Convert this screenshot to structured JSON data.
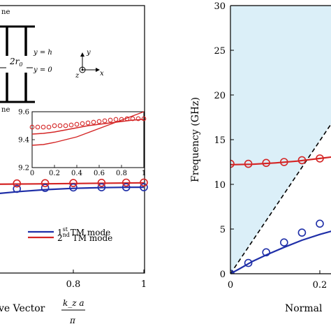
{
  "colors": {
    "blue": "#1f2fa8",
    "red": "#d42525",
    "light_region": "#dbeff8",
    "black": "#000000"
  },
  "chart_data": [
    {
      "type": "line",
      "panel": "left",
      "xlabel": "ve Vector",
      "xlabel_fraction_num": "k_z a",
      "xlabel_fraction_den": "π",
      "xticks": [
        "0.8",
        "1"
      ],
      "xtick_values": [
        0.8,
        1.0
      ],
      "xlim": [
        0.58,
        1.0
      ],
      "ylim": [
        0,
        30
      ],
      "legend": [
        {
          "label_prefix": "1",
          "label_sup": "st",
          "label_suffix": " TM mode",
          "color": "blue"
        },
        {
          "label_prefix": "2",
          "label_sup": "nd",
          "label_suffix": " TM mode",
          "color": "red"
        }
      ],
      "legend_position": "bottom-right",
      "series": [
        {
          "name": "1st TM mode",
          "color": "blue",
          "line_x": [
            0.58,
            0.65,
            0.72,
            0.8,
            0.88,
            0.95,
            1.0
          ],
          "line_y": [
            8.9,
            9.15,
            9.35,
            9.5,
            9.58,
            9.62,
            9.63
          ],
          "points_x": [
            0.58,
            0.64,
            0.72,
            0.8,
            0.88,
            0.95,
            1.0
          ],
          "points_y": [
            9.3,
            9.45,
            9.55,
            9.6,
            9.62,
            9.63,
            9.63
          ]
        },
        {
          "name": "2nd TM mode",
          "color": "red",
          "line_x": [
            0.58,
            0.7,
            0.8,
            0.9,
            1.0
          ],
          "line_y": [
            9.96,
            10.0,
            10.04,
            10.08,
            10.12
          ],
          "points_x": [
            0.58,
            0.64,
            0.72,
            0.8,
            0.88,
            0.95,
            1.0
          ],
          "points_y": [
            10.0,
            10.05,
            10.08,
            10.1,
            10.12,
            10.14,
            10.15
          ]
        }
      ],
      "inset": {
        "xlim": [
          0,
          1
        ],
        "ylim": [
          9.2,
          9.6
        ],
        "xticks": [
          "0",
          "0.2",
          "0.4",
          "0.6",
          "0.8",
          "1"
        ],
        "xtick_values": [
          0,
          0.2,
          0.4,
          0.6,
          0.8,
          1
        ],
        "yticks": [
          "9.2",
          "9.4",
          "9.6"
        ],
        "ytick_values": [
          9.2,
          9.4,
          9.6
        ],
        "line_x": [
          0,
          0.1,
          0.2,
          0.3,
          0.4,
          0.5,
          0.6,
          0.7,
          0.8,
          0.9,
          1.0
        ],
        "line_lower_y": [
          9.36,
          9.365,
          9.38,
          9.4,
          9.42,
          9.45,
          9.48,
          9.51,
          9.54,
          9.57,
          9.6
        ],
        "line_upper_y": [
          9.44,
          9.445,
          9.455,
          9.47,
          9.485,
          9.5,
          9.51,
          9.52,
          9.53,
          9.54,
          9.545
        ],
        "points_x": [
          0,
          0.05,
          0.1,
          0.15,
          0.2,
          0.25,
          0.3,
          0.35,
          0.4,
          0.45,
          0.5,
          0.55,
          0.6,
          0.65,
          0.7,
          0.75,
          0.8,
          0.85,
          0.9,
          0.95,
          1.0
        ],
        "points_y": [
          9.49,
          9.49,
          9.49,
          9.49,
          9.5,
          9.5,
          9.5,
          9.505,
          9.51,
          9.515,
          9.52,
          9.525,
          9.53,
          9.535,
          9.54,
          9.545,
          9.545,
          9.55,
          9.55,
          9.55,
          9.55
        ]
      },
      "schematic": {
        "ne_top": "ne",
        "ne_bottom": "ne",
        "r0_label": "2r",
        "r0_sub": "0",
        "y_h": "y = h",
        "y_0": "y = 0",
        "axis_y": "y",
        "axis_x": "x",
        "axis_z": "z"
      }
    },
    {
      "type": "line",
      "panel": "right",
      "ylabel": "Frequency  (GHz)",
      "xlabel": "Normal",
      "xticks": [
        "0",
        "0.2"
      ],
      "xtick_values": [
        0,
        0.2
      ],
      "yticks": [
        "0",
        "5",
        "10",
        "15",
        "20",
        "25",
        "30"
      ],
      "ytick_values": [
        0,
        5,
        10,
        15,
        20,
        25,
        30
      ],
      "xlim": [
        0,
        0.3
      ],
      "ylim": [
        0,
        30
      ],
      "light_line_slope": 74.4,
      "series": [
        {
          "name": "1st TM mode",
          "color": "blue",
          "line_x": [
            0,
            0.02,
            0.05,
            0.08,
            0.12,
            0.16,
            0.2,
            0.24,
            0.28,
            0.3
          ],
          "line_y": [
            0,
            0.55,
            1.4,
            2.1,
            2.95,
            3.75,
            4.4,
            4.95,
            5.4,
            5.6
          ],
          "points_x": [
            0,
            0.04,
            0.08,
            0.12,
            0.16,
            0.2,
            0.24
          ],
          "points_y": [
            0,
            1.2,
            2.4,
            3.5,
            4.6,
            5.6,
            6.3
          ]
        },
        {
          "name": "2nd TM mode",
          "color": "red",
          "line_x": [
            0,
            0.05,
            0.1,
            0.15,
            0.2,
            0.25,
            0.3
          ],
          "line_y": [
            12.2,
            12.25,
            12.4,
            12.6,
            12.9,
            13.2,
            13.5
          ],
          "points_x": [
            0,
            0.04,
            0.08,
            0.12,
            0.16,
            0.2,
            0.24
          ],
          "points_y": [
            12.3,
            12.3,
            12.4,
            12.5,
            12.7,
            12.9,
            13.3
          ]
        }
      ]
    }
  ]
}
